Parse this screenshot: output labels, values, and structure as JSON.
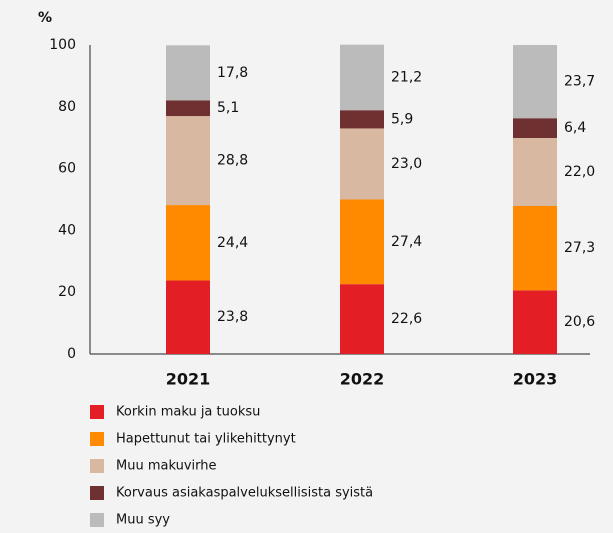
{
  "chart_data": {
    "type": "stacked_bar",
    "y_label": "%",
    "categories": [
      "2021",
      "2022",
      "2023"
    ],
    "series": [
      {
        "name": "Korkin maku ja tuoksu",
        "color": "#e31e24",
        "values": [
          23.8,
          22.6,
          20.6
        ],
        "value_labels": [
          "23,8",
          "22,6",
          "20,6"
        ]
      },
      {
        "name": "Hapettunut tai ylikehittynyt",
        "color": "#ff8a00",
        "values": [
          24.4,
          27.4,
          27.3
        ],
        "value_labels": [
          "24,4",
          "27,4",
          "27,3"
        ]
      },
      {
        "name": "Muu makuvirhe",
        "color": "#d8b8a0",
        "values": [
          28.8,
          23.0,
          22.0
        ],
        "value_labels": [
          "28,8",
          "23,0",
          "22,0"
        ]
      },
      {
        "name": "Korvaus asiakaspalveluksellisista syistä",
        "color": "#6e3030",
        "values": [
          5.1,
          5.9,
          6.4
        ],
        "value_labels": [
          "5,1",
          "5,9",
          "6,4"
        ]
      },
      {
        "name": "Muu syy",
        "color": "#bbbbbb",
        "values": [
          17.8,
          21.2,
          23.7
        ],
        "value_labels": [
          "17,8",
          "21,2",
          "23,7"
        ]
      }
    ],
    "ylim": [
      0,
      100
    ],
    "yticks": [
      0,
      20,
      40,
      60,
      80,
      100
    ],
    "grid": false
  }
}
